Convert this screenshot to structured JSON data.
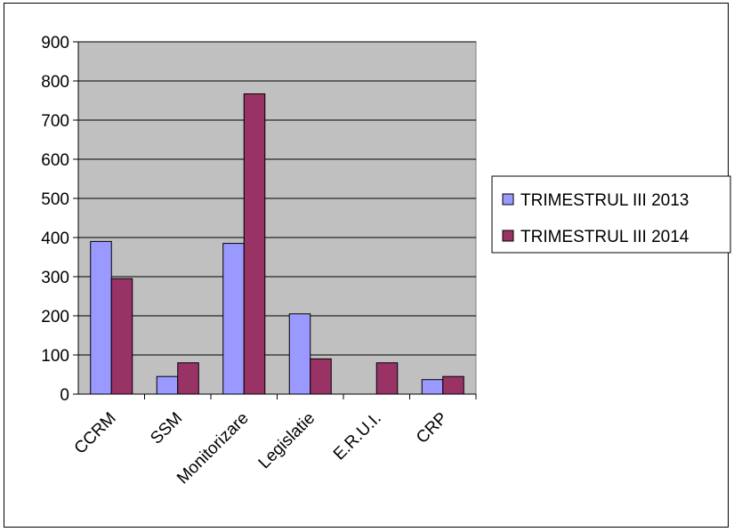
{
  "chart_data": {
    "type": "bar",
    "title": "",
    "xlabel": "",
    "ylabel": "",
    "categories": [
      "CCRM",
      "SSM",
      "Monitorizare",
      "Legislatie",
      "E.R.U.I.",
      "CRP"
    ],
    "series": [
      {
        "name": "TRIMESTRUL III 2013",
        "values": [
          390,
          45,
          385,
          205,
          0,
          37
        ],
        "color": "#9999ff"
      },
      {
        "name": "TRIMESTRUL III 2014",
        "values": [
          295,
          80,
          767,
          90,
          80,
          45
        ],
        "color": "#993366"
      }
    ],
    "ylim": [
      0,
      900
    ],
    "yticks": [
      0,
      100,
      200,
      300,
      400,
      500,
      600,
      700,
      800,
      900
    ],
    "grid": true,
    "legend": "right",
    "plot_background": "#c0c0c0"
  }
}
